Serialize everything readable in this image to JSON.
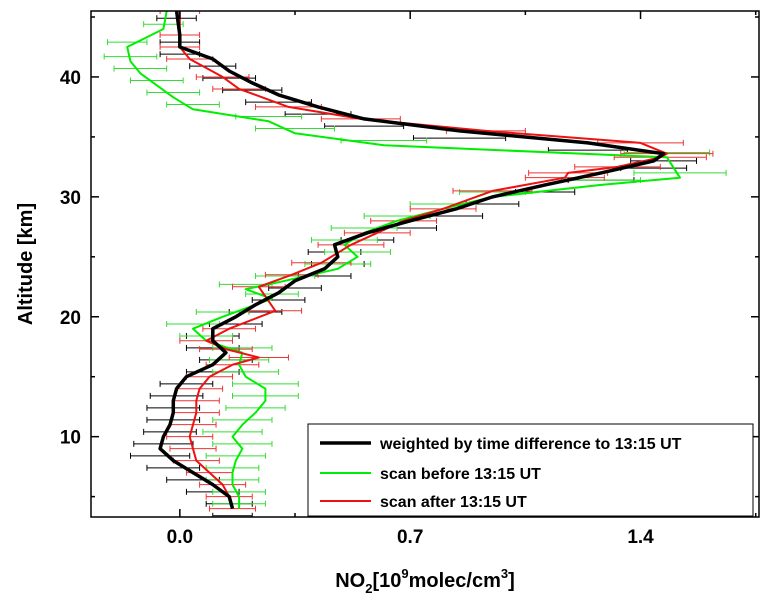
{
  "chart_data": {
    "type": "line",
    "title": "",
    "xlabel": {
      "pre": "NO",
      "sub": "2",
      "mid": "[10",
      "sup1": "9",
      "mid2": "molec/cm",
      "sup2": "3",
      "post": "]"
    },
    "ylabel": "Altitude [km]",
    "xlim": [
      -0.27,
      1.76
    ],
    "ylim": [
      3.3,
      45.5
    ],
    "xticks": [
      0.0,
      0.7,
      1.4
    ],
    "xtick_labels": [
      "0.0",
      "0.7",
      "1.4"
    ],
    "xminor_step": 0.35,
    "yticks": [
      10,
      20,
      30,
      40
    ],
    "ytick_labels": [
      "10",
      "20",
      "30",
      "40"
    ],
    "yminor_step": 5,
    "grid": false,
    "legend_position": "bottom-right",
    "series": [
      {
        "name": "weighted by time difference to 13:15 UT",
        "color": "#000000",
        "error_color": "#000000",
        "error_offset": -0.006,
        "line_weight": "heavy",
        "points": [
          [
            0.16,
            4.0,
            0.06
          ],
          [
            0.15,
            5.0,
            0.07
          ],
          [
            0.1,
            6.0,
            0.08
          ],
          [
            0.04,
            7.0,
            0.08
          ],
          [
            -0.02,
            8.0,
            0.08
          ],
          [
            -0.06,
            9.0,
            0.09
          ],
          [
            -0.05,
            10.0,
            0.09
          ],
          [
            -0.03,
            11.0,
            0.08
          ],
          [
            -0.02,
            12.0,
            0.08
          ],
          [
            -0.02,
            13.0,
            0.08
          ],
          [
            -0.01,
            14.0,
            0.08
          ],
          [
            0.02,
            15.0,
            0.08
          ],
          [
            0.1,
            16.0,
            0.08
          ],
          [
            0.14,
            17.0,
            0.08
          ],
          [
            0.1,
            18.0,
            0.08
          ],
          [
            0.1,
            19.0,
            0.08
          ],
          [
            0.17,
            20.0,
            0.08
          ],
          [
            0.23,
            21.0,
            0.08
          ],
          [
            0.3,
            22.0,
            0.08
          ],
          [
            0.35,
            23.0,
            0.08
          ],
          [
            0.44,
            24.0,
            0.08
          ],
          [
            0.48,
            25.0,
            0.08
          ],
          [
            0.47,
            26.0,
            0.08
          ],
          [
            0.57,
            27.0,
            0.08
          ],
          [
            0.7,
            28.0,
            0.08
          ],
          [
            0.84,
            29.0,
            0.08
          ],
          [
            0.95,
            30.0,
            0.08
          ],
          [
            1.11,
            31.0,
            0.09
          ],
          [
            1.28,
            32.0,
            0.1
          ],
          [
            1.44,
            33.0,
            0.1
          ],
          [
            1.47,
            33.6,
            0.1
          ],
          [
            1.24,
            34.5,
            0.12
          ],
          [
            0.85,
            35.5,
            0.14
          ],
          [
            0.56,
            36.5,
            0.12
          ],
          [
            0.42,
            37.5,
            0.1
          ],
          [
            0.3,
            38.5,
            0.1
          ],
          [
            0.22,
            39.5,
            0.09
          ],
          [
            0.15,
            40.5,
            0.08
          ],
          [
            0.1,
            41.5,
            0.07
          ],
          [
            0.0,
            42.5,
            0.06
          ],
          [
            0.0,
            43.5,
            0.06
          ],
          [
            -0.01,
            45.5,
            0.06
          ]
        ]
      },
      {
        "name": "scan before 13:15 UT",
        "color": "#00ee00",
        "error_color": "#33dd33",
        "error_offset": 0.004,
        "line_weight": "normal",
        "points": [
          [
            0.18,
            4.0,
            0.08
          ],
          [
            0.18,
            5.0,
            0.08
          ],
          [
            0.16,
            6.0,
            0.08
          ],
          [
            0.16,
            7.0,
            0.08
          ],
          [
            0.17,
            8.0,
            0.09
          ],
          [
            0.19,
            9.0,
            0.09
          ],
          [
            0.16,
            10.0,
            0.09
          ],
          [
            0.19,
            11.0,
            0.09
          ],
          [
            0.23,
            12.0,
            0.09
          ],
          [
            0.26,
            13.0,
            0.1
          ],
          [
            0.26,
            14.0,
            0.1
          ],
          [
            0.2,
            15.0,
            0.1
          ],
          [
            0.18,
            16.0,
            0.09
          ],
          [
            0.19,
            17.0,
            0.09
          ],
          [
            0.08,
            18.0,
            0.08
          ],
          [
            0.04,
            19.0,
            0.08
          ],
          [
            0.13,
            20.0,
            0.08
          ],
          [
            0.28,
            21.5,
            0.08
          ],
          [
            0.2,
            22.3,
            0.08
          ],
          [
            0.32,
            23.0,
            0.09
          ],
          [
            0.48,
            24.0,
            0.1
          ],
          [
            0.54,
            25.0,
            0.1
          ],
          [
            0.5,
            26.0,
            0.1
          ],
          [
            0.56,
            27.0,
            0.1
          ],
          [
            0.66,
            28.0,
            0.1
          ],
          [
            0.8,
            29.0,
            0.1
          ],
          [
            0.95,
            30.0,
            0.1
          ],
          [
            1.28,
            31.0,
            0.12
          ],
          [
            1.52,
            31.6,
            0.14
          ],
          [
            1.48,
            33.3,
            0.13
          ],
          [
            0.62,
            34.3,
            0.13
          ],
          [
            0.35,
            35.3,
            0.12
          ],
          [
            0.27,
            36.3,
            0.1
          ],
          [
            0.04,
            37.3,
            0.08
          ],
          [
            -0.02,
            38.3,
            0.08
          ],
          [
            -0.07,
            39.3,
            0.08
          ],
          [
            -0.12,
            40.3,
            0.08
          ],
          [
            -0.15,
            41.3,
            0.08
          ],
          [
            -0.16,
            42.5,
            0.06
          ],
          [
            -0.05,
            44.0,
            0.06
          ],
          [
            -0.04,
            45.5,
            0.06
          ]
        ]
      },
      {
        "name": "scan after 13:15 UT",
        "color": "#ee1111",
        "error_color": "#ee3333",
        "error_offset": 0.0,
        "line_weight": "normal",
        "points": [
          [
            0.16,
            4.0,
            0.07
          ],
          [
            0.15,
            5.0,
            0.07
          ],
          [
            0.13,
            6.0,
            0.07
          ],
          [
            0.09,
            7.0,
            0.07
          ],
          [
            0.05,
            8.0,
            0.07
          ],
          [
            0.04,
            9.0,
            0.07
          ],
          [
            0.03,
            10.0,
            0.07
          ],
          [
            0.04,
            11.0,
            0.07
          ],
          [
            0.05,
            12.0,
            0.07
          ],
          [
            0.05,
            13.0,
            0.07
          ],
          [
            0.06,
            14.0,
            0.07
          ],
          [
            0.09,
            15.0,
            0.07
          ],
          [
            0.16,
            16.0,
            0.08
          ],
          [
            0.24,
            16.6,
            0.09
          ],
          [
            0.14,
            17.3,
            0.08
          ],
          [
            0.08,
            18.0,
            0.08
          ],
          [
            0.15,
            19.0,
            0.08
          ],
          [
            0.29,
            20.5,
            0.08
          ],
          [
            0.24,
            22.5,
            0.08
          ],
          [
            0.34,
            23.5,
            0.08
          ],
          [
            0.43,
            24.5,
            0.09
          ],
          [
            0.52,
            26.0,
            0.1
          ],
          [
            0.6,
            27.0,
            0.1
          ],
          [
            0.68,
            28.0,
            0.1
          ],
          [
            0.8,
            29.0,
            0.1
          ],
          [
            0.95,
            30.5,
            0.12
          ],
          [
            1.17,
            31.6,
            0.12
          ],
          [
            1.18,
            32.0,
            0.12
          ],
          [
            1.33,
            32.5,
            0.13
          ],
          [
            1.46,
            33.3,
            0.14
          ],
          [
            1.48,
            33.6,
            0.14
          ],
          [
            1.4,
            34.5,
            0.13
          ],
          [
            0.93,
            35.5,
            0.12
          ],
          [
            0.55,
            36.5,
            0.12
          ],
          [
            0.33,
            37.5,
            0.1
          ],
          [
            0.18,
            39.0,
            0.08
          ],
          [
            0.13,
            40.0,
            0.08
          ],
          [
            0.03,
            41.5,
            0.07
          ],
          [
            0.0,
            42.5,
            0.06
          ],
          [
            0.0,
            43.5,
            0.06
          ],
          [
            0.0,
            45.5,
            0.06
          ]
        ]
      }
    ]
  }
}
